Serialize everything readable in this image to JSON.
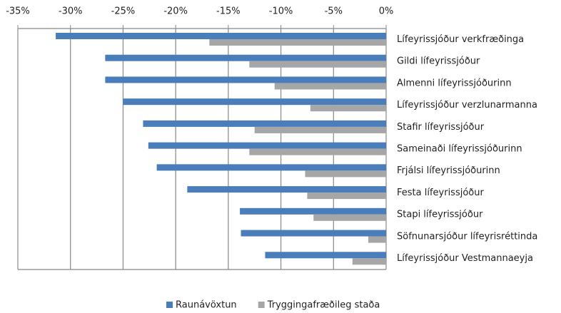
{
  "chart_data": {
    "type": "bar",
    "orientation": "horizontal",
    "categories": [
      "Lífeyrissjóður verkfræðinga",
      "Gildi lífeyrissjóður",
      "Almenni lífeyrissjóðurinn",
      "Lífeyrissjóður verzlunarmanna",
      "Stafir lífeyrissjóður",
      "Sameinaði lífeyrissjóðurinn",
      "Frjálsi lífeyrissjóðurinn",
      "Festa lífeyrissjóður",
      "Stapi lífeyrissjóður",
      "Söfnunarsjóður lífeyrisréttinda",
      "Lífeyrissjóður Vestmannaeyja"
    ],
    "series": [
      {
        "name": "Raunávöxtun",
        "color": "#4a7ebb",
        "values": [
          -31.4,
          -26.7,
          -26.7,
          -25.0,
          -23.1,
          -22.6,
          -21.8,
          -18.9,
          -13.9,
          -13.8,
          -11.5
        ]
      },
      {
        "name": "Tryggingafræðileg staða",
        "color": "#a6a6a6",
        "values": [
          -16.8,
          -13.0,
          -10.6,
          -7.2,
          -12.5,
          -13.0,
          -7.7,
          -7.5,
          -6.9,
          -1.7,
          -3.2
        ]
      }
    ],
    "xlim": [
      -35,
      0
    ],
    "xticks": [
      {
        "value": -35,
        "label": "-35%"
      },
      {
        "value": -30,
        "label": "-30%"
      },
      {
        "value": -25,
        "label": "-25%"
      },
      {
        "value": -20,
        "label": "-20%"
      },
      {
        "value": -15,
        "label": "-15%"
      },
      {
        "value": -10,
        "label": "-10%"
      },
      {
        "value": -5,
        "label": "-5%"
      },
      {
        "value": 0,
        "label": "0%"
      }
    ],
    "grid": true,
    "legend": "bottom"
  }
}
